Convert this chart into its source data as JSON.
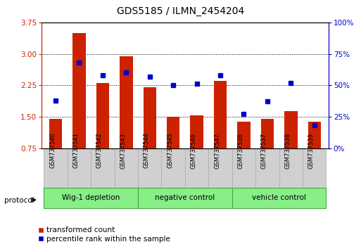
{
  "title": "GDS5185 / ILMN_2454204",
  "samples": [
    "GSM737540",
    "GSM737541",
    "GSM737542",
    "GSM737543",
    "GSM737544",
    "GSM737545",
    "GSM737546",
    "GSM737547",
    "GSM737536",
    "GSM737537",
    "GSM737538",
    "GSM737539"
  ],
  "red_values": [
    1.45,
    3.5,
    2.3,
    2.95,
    2.2,
    1.5,
    1.53,
    2.35,
    1.38,
    1.45,
    1.63,
    1.38
  ],
  "blue_values": [
    38,
    68,
    58,
    60,
    57,
    50,
    51,
    58,
    27,
    37,
    52,
    18
  ],
  "ylim_left": [
    0.75,
    3.75
  ],
  "ylim_right": [
    0,
    100
  ],
  "yticks_left": [
    0.75,
    1.5,
    2.25,
    3.0,
    3.75
  ],
  "yticks_right": [
    0,
    25,
    50,
    75,
    100
  ],
  "ytick_labels_right": [
    "0%",
    "25%",
    "50%",
    "75%",
    "100%"
  ],
  "groups": [
    {
      "label": "Wig-1 depletion",
      "start": 0,
      "end": 4
    },
    {
      "label": "negative control",
      "start": 4,
      "end": 8
    },
    {
      "label": "vehicle control",
      "start": 8,
      "end": 12
    }
  ],
  "bar_color": "#cc2200",
  "dot_color": "#0000cc",
  "bar_width": 0.55,
  "bg_tick": "#cccccc",
  "group_bg": "#88ee88",
  "group_border": "#44aa44",
  "legend_red_label": "transformed count",
  "legend_blue_label": "percentile rank within the sample",
  "protocol_label": "protocol"
}
